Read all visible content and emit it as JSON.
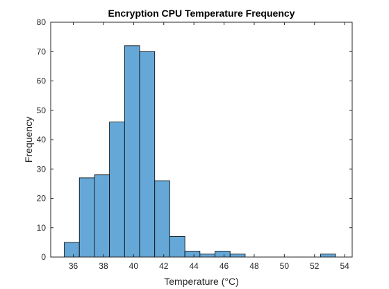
{
  "chart_data": {
    "type": "bar",
    "title": "Encryption CPU Temperature Frequency",
    "xlabel": "Temperature (°C)",
    "ylabel": "Frequency",
    "xlim": [
      34.5,
      54.5
    ],
    "ylim": [
      0,
      80
    ],
    "xticks": [
      36,
      38,
      40,
      42,
      44,
      46,
      48,
      50,
      52,
      54
    ],
    "yticks": [
      0,
      10,
      20,
      30,
      40,
      50,
      60,
      70,
      80
    ],
    "bin_width": 1,
    "bins": [
      {
        "x0": 35.4,
        "count": 5
      },
      {
        "x0": 36.4,
        "count": 27
      },
      {
        "x0": 37.4,
        "count": 28
      },
      {
        "x0": 38.4,
        "count": 46
      },
      {
        "x0": 39.4,
        "count": 72
      },
      {
        "x0": 40.4,
        "count": 70
      },
      {
        "x0": 41.4,
        "count": 26
      },
      {
        "x0": 42.4,
        "count": 7
      },
      {
        "x0": 43.4,
        "count": 2
      },
      {
        "x0": 44.4,
        "count": 1
      },
      {
        "x0": 45.4,
        "count": 2
      },
      {
        "x0": 46.4,
        "count": 1
      },
      {
        "x0": 47.4,
        "count": 0
      },
      {
        "x0": 48.4,
        "count": 0
      },
      {
        "x0": 49.4,
        "count": 0
      },
      {
        "x0": 50.4,
        "count": 0
      },
      {
        "x0": 51.4,
        "count": 0
      },
      {
        "x0": 52.4,
        "count": 1
      }
    ],
    "bar_color": "#65a8d8",
    "edge_color": "#000000",
    "grid": false
  }
}
